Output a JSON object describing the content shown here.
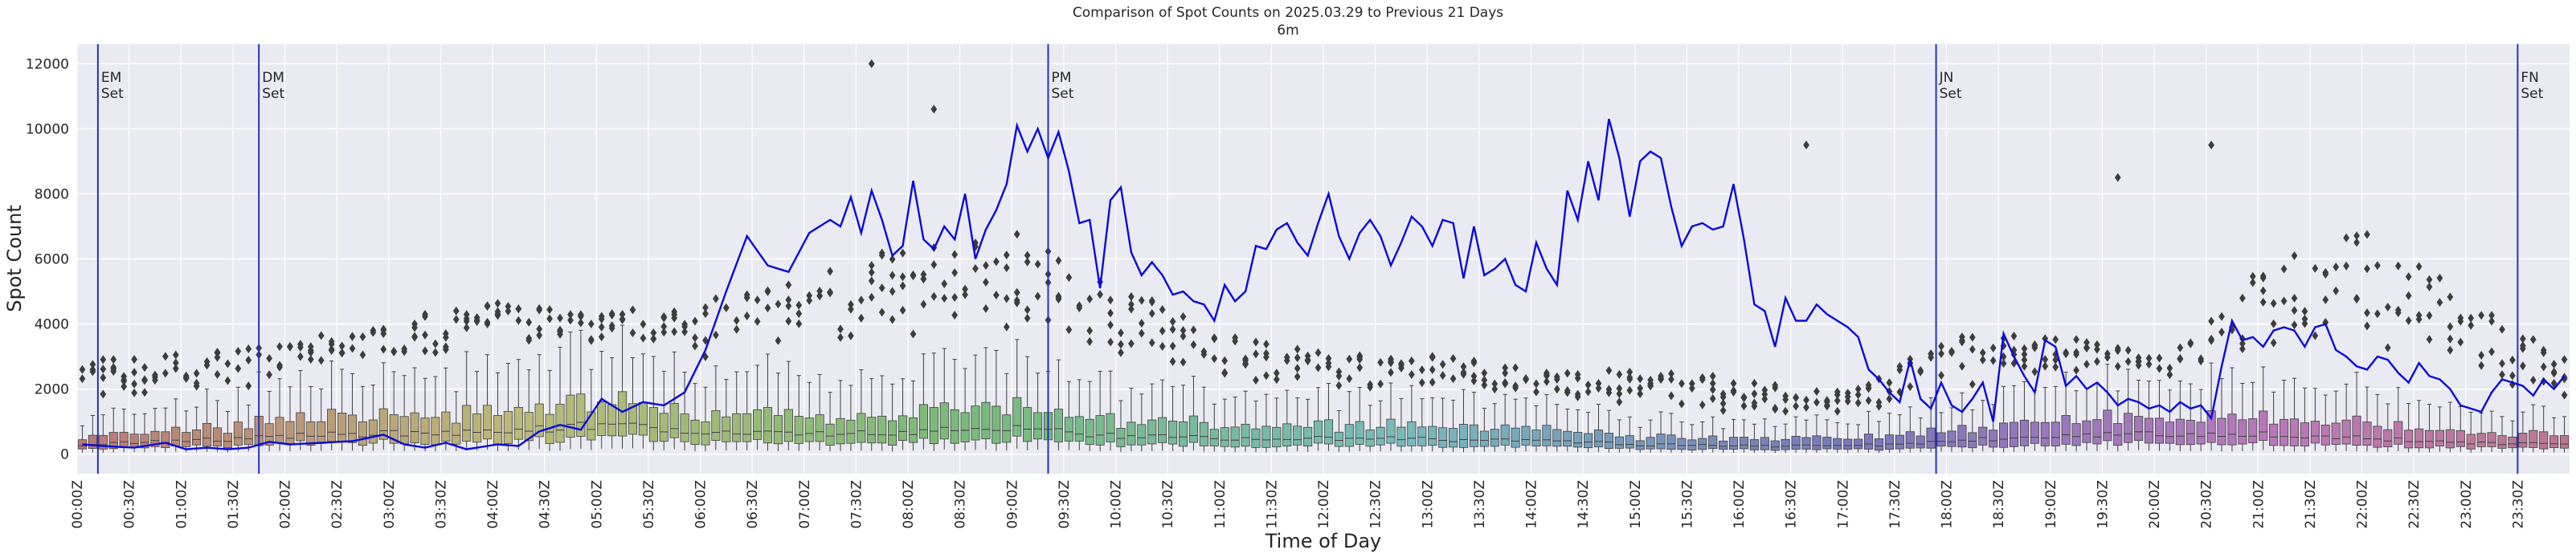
{
  "chart_data": {
    "type": "box-and-line",
    "title": "Comparison of Spot Counts on 2025.03.29 to Previous 21 Days",
    "subtitle": "6m",
    "xlabel": "Time of Day",
    "ylabel": "Spot Count",
    "ylim": [
      -600,
      12600
    ],
    "yticks": [
      0,
      2000,
      4000,
      6000,
      8000,
      10000,
      12000
    ],
    "interval_minutes": 6,
    "num_bins": 240,
    "xtick_labels": [
      "00:00Z",
      "00:30Z",
      "01:00Z",
      "01:30Z",
      "02:00Z",
      "02:30Z",
      "03:00Z",
      "03:30Z",
      "04:00Z",
      "04:30Z",
      "05:00Z",
      "05:30Z",
      "06:00Z",
      "06:30Z",
      "07:00Z",
      "07:30Z",
      "08:00Z",
      "08:30Z",
      "09:00Z",
      "09:30Z",
      "10:00Z",
      "10:30Z",
      "11:00Z",
      "11:30Z",
      "12:00Z",
      "12:30Z",
      "13:00Z",
      "13:30Z",
      "14:00Z",
      "14:30Z",
      "15:00Z",
      "15:30Z",
      "16:00Z",
      "16:30Z",
      "17:00Z",
      "17:30Z",
      "18:00Z",
      "18:30Z",
      "19:00Z",
      "19:30Z",
      "20:00Z",
      "20:30Z",
      "21:00Z",
      "21:30Z",
      "22:00Z",
      "22:30Z",
      "23:00Z",
      "23:30Z"
    ],
    "events": [
      {
        "line1": "EM",
        "line2": "Set",
        "bin": 2
      },
      {
        "line1": "DM",
        "line2": "Set",
        "bin": 17.5
      },
      {
        "line1": "PM",
        "line2": "Set",
        "bin": 93.5
      },
      {
        "line1": "JN",
        "line2": "Set",
        "bin": 179
      },
      {
        "line1": "FN",
        "line2": "Set",
        "bin": 235
      }
    ],
    "current_day_anchors": [
      [
        0,
        300
      ],
      [
        2,
        250
      ],
      [
        5,
        200
      ],
      [
        8,
        350
      ],
      [
        10,
        150
      ],
      [
        12,
        200
      ],
      [
        14,
        150
      ],
      [
        16,
        200
      ],
      [
        18,
        380
      ],
      [
        20,
        300
      ],
      [
        23,
        350
      ],
      [
        26,
        400
      ],
      [
        29,
        600
      ],
      [
        31,
        300
      ],
      [
        33,
        200
      ],
      [
        35,
        350
      ],
      [
        37,
        150
      ],
      [
        40,
        300
      ],
      [
        42,
        250
      ],
      [
        44,
        700
      ],
      [
        46,
        900
      ],
      [
        48,
        750
      ],
      [
        50,
        1700
      ],
      [
        52,
        1300
      ],
      [
        54,
        1600
      ],
      [
        56,
        1500
      ],
      [
        58,
        1900
      ],
      [
        60,
        3200
      ],
      [
        62,
        5000
      ],
      [
        64,
        6700
      ],
      [
        66,
        5800
      ],
      [
        68,
        5600
      ],
      [
        70,
        6800
      ],
      [
        72,
        7200
      ],
      [
        73,
        7000
      ],
      [
        74,
        7900
      ],
      [
        75,
        6800
      ],
      [
        76,
        8100
      ],
      [
        77,
        7200
      ],
      [
        78,
        6100
      ],
      [
        79,
        6400
      ],
      [
        80,
        8400
      ],
      [
        81,
        6600
      ],
      [
        82,
        6300
      ],
      [
        83,
        7000
      ],
      [
        84,
        6600
      ],
      [
        85,
        8000
      ],
      [
        86,
        6000
      ],
      [
        87,
        6900
      ],
      [
        88,
        7500
      ],
      [
        89,
        8300
      ],
      [
        90,
        10100
      ],
      [
        91,
        9300
      ],
      [
        92,
        10000
      ],
      [
        93,
        9100
      ],
      [
        94,
        9900
      ],
      [
        95,
        8700
      ],
      [
        96,
        7100
      ],
      [
        97,
        7200
      ],
      [
        98,
        5100
      ],
      [
        99,
        7800
      ],
      [
        100,
        8200
      ],
      [
        101,
        6200
      ],
      [
        102,
        5500
      ],
      [
        103,
        5900
      ],
      [
        104,
        5500
      ],
      [
        105,
        4900
      ],
      [
        106,
        5000
      ],
      [
        107,
        4700
      ],
      [
        108,
        4600
      ],
      [
        109,
        4100
      ],
      [
        110,
        5200
      ],
      [
        111,
        4700
      ],
      [
        112,
        5000
      ],
      [
        113,
        6400
      ],
      [
        114,
        6300
      ],
      [
        115,
        6900
      ],
      [
        116,
        7100
      ],
      [
        117,
        6500
      ],
      [
        118,
        6100
      ],
      [
        119,
        7100
      ],
      [
        120,
        8000
      ],
      [
        121,
        6700
      ],
      [
        122,
        6000
      ],
      [
        123,
        6800
      ],
      [
        124,
        7200
      ],
      [
        125,
        6700
      ],
      [
        126,
        5800
      ],
      [
        127,
        6500
      ],
      [
        128,
        7300
      ],
      [
        129,
        7000
      ],
      [
        130,
        6400
      ],
      [
        131,
        7200
      ],
      [
        132,
        7100
      ],
      [
        133,
        5400
      ],
      [
        134,
        7000
      ],
      [
        135,
        5500
      ],
      [
        136,
        5700
      ],
      [
        137,
        6000
      ],
      [
        138,
        5200
      ],
      [
        139,
        5000
      ],
      [
        140,
        6500
      ],
      [
        141,
        5700
      ],
      [
        142,
        5200
      ],
      [
        143,
        8100
      ],
      [
        144,
        7200
      ],
      [
        145,
        9000
      ],
      [
        146,
        7800
      ],
      [
        147,
        10300
      ],
      [
        148,
        9100
      ],
      [
        149,
        7300
      ],
      [
        150,
        9000
      ],
      [
        151,
        9300
      ],
      [
        152,
        9100
      ],
      [
        153,
        7600
      ],
      [
        154,
        6400
      ],
      [
        155,
        7000
      ],
      [
        156,
        7100
      ],
      [
        157,
        6900
      ],
      [
        158,
        7000
      ],
      [
        159,
        8300
      ],
      [
        160,
        6600
      ],
      [
        161,
        4600
      ],
      [
        162,
        4400
      ],
      [
        163,
        3300
      ],
      [
        164,
        4800
      ],
      [
        165,
        4100
      ],
      [
        166,
        4100
      ],
      [
        167,
        4600
      ],
      [
        168,
        4300
      ],
      [
        169,
        4100
      ],
      [
        170,
        3900
      ],
      [
        171,
        3600
      ],
      [
        172,
        2600
      ],
      [
        173,
        2300
      ],
      [
        174,
        1900
      ],
      [
        175,
        1600
      ],
      [
        176,
        2900
      ],
      [
        177,
        1700
      ],
      [
        178,
        1400
      ],
      [
        179,
        2200
      ],
      [
        180,
        1500
      ],
      [
        181,
        1300
      ],
      [
        182,
        1700
      ],
      [
        183,
        2200
      ],
      [
        184,
        1000
      ],
      [
        185,
        3700
      ],
      [
        186,
        3000
      ],
      [
        187,
        2400
      ],
      [
        188,
        1900
      ],
      [
        189,
        3500
      ],
      [
        190,
        3300
      ],
      [
        191,
        2100
      ],
      [
        192,
        2400
      ],
      [
        193,
        2000
      ],
      [
        194,
        2200
      ],
      [
        195,
        1900
      ],
      [
        196,
        1500
      ],
      [
        197,
        1700
      ],
      [
        198,
        1600
      ],
      [
        199,
        1400
      ],
      [
        200,
        1500
      ],
      [
        201,
        1300
      ],
      [
        202,
        1600
      ],
      [
        203,
        1400
      ],
      [
        204,
        1500
      ],
      [
        205,
        1100
      ],
      [
        206,
        2700
      ],
      [
        207,
        4100
      ],
      [
        208,
        3500
      ],
      [
        209,
        3600
      ],
      [
        210,
        3300
      ],
      [
        211,
        3800
      ],
      [
        212,
        3900
      ],
      [
        213,
        3800
      ],
      [
        214,
        3300
      ],
      [
        215,
        3900
      ],
      [
        216,
        4000
      ],
      [
        217,
        3200
      ],
      [
        218,
        3000
      ],
      [
        219,
        2700
      ],
      [
        220,
        2600
      ],
      [
        221,
        3000
      ],
      [
        222,
        2900
      ],
      [
        223,
        2500
      ],
      [
        224,
        2200
      ],
      [
        225,
        2800
      ],
      [
        226,
        2400
      ],
      [
        227,
        2300
      ],
      [
        228,
        2000
      ],
      [
        229,
        1500
      ],
      [
        230,
        1400
      ],
      [
        231,
        1300
      ],
      [
        232,
        1900
      ],
      [
        233,
        2300
      ],
      [
        234,
        2200
      ],
      [
        235,
        2100
      ],
      [
        236,
        1800
      ],
      [
        237,
        2300
      ],
      [
        238,
        2000
      ],
      [
        239,
        2400
      ]
    ],
    "typical_median_anchors": [
      [
        0,
        300
      ],
      [
        10,
        400
      ],
      [
        20,
        550
      ],
      [
        30,
        650
      ],
      [
        40,
        700
      ],
      [
        50,
        900
      ],
      [
        60,
        700
      ],
      [
        70,
        600
      ],
      [
        80,
        700
      ],
      [
        90,
        800
      ],
      [
        100,
        550
      ],
      [
        110,
        500
      ],
      [
        120,
        500
      ],
      [
        130,
        450
      ],
      [
        140,
        400
      ],
      [
        150,
        300
      ],
      [
        160,
        250
      ],
      [
        170,
        250
      ],
      [
        180,
        400
      ],
      [
        190,
        600
      ],
      [
        200,
        600
      ],
      [
        210,
        600
      ],
      [
        220,
        500
      ],
      [
        230,
        350
      ],
      [
        239,
        300
      ]
    ],
    "outlier_cloud_anchors": [
      [
        0,
        2800
      ],
      [
        10,
        3000
      ],
      [
        20,
        3300
      ],
      [
        30,
        4000
      ],
      [
        40,
        4500
      ],
      [
        50,
        4300
      ],
      [
        60,
        4500
      ],
      [
        70,
        5500
      ],
      [
        80,
        6000
      ],
      [
        90,
        6500
      ],
      [
        95,
        5500
      ],
      [
        100,
        5000
      ],
      [
        110,
        3500
      ],
      [
        120,
        3000
      ],
      [
        130,
        3000
      ],
      [
        140,
        2500
      ],
      [
        150,
        2500
      ],
      [
        160,
        2200
      ],
      [
        170,
        1800
      ],
      [
        180,
        3500
      ],
      [
        190,
        3500
      ],
      [
        200,
        3000
      ],
      [
        210,
        5500
      ],
      [
        220,
        6500
      ],
      [
        230,
        4500
      ],
      [
        239,
        2800
      ]
    ],
    "labeled_peak_outliers": [
      {
        "bin": 76,
        "value": 12000
      },
      {
        "bin": 82,
        "value": 10600
      },
      {
        "bin": 166,
        "value": 9500
      },
      {
        "bin": 205,
        "value": 9500
      },
      {
        "bin": 196,
        "value": 8500
      }
    ]
  }
}
